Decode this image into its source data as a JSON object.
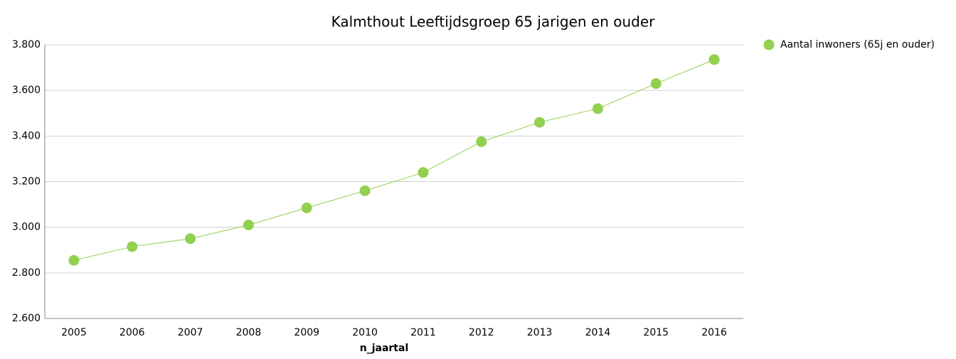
{
  "chart_data": {
    "type": "line",
    "title": "Kalmthout  Leeftijdsgroep 65 jarigen en ouder",
    "x_label": "n_jaartal",
    "categories": [
      "2005",
      "2006",
      "2007",
      "2008",
      "2009",
      "2010",
      "2011",
      "2012",
      "2013",
      "2014",
      "2015",
      "2016"
    ],
    "series": [
      {
        "name": "Aantal inwoners (65j en ouder)",
        "color": "#92d050",
        "values": [
          2855,
          2915,
          2950,
          3010,
          3085,
          3160,
          3240,
          3375,
          3460,
          3520,
          3630,
          3735
        ]
      }
    ],
    "ylim": [
      2600,
      3800
    ],
    "yticks": [
      {
        "value": 2600,
        "label": "2.600"
      },
      {
        "value": 2800,
        "label": "2.800"
      },
      {
        "value": 3000,
        "label": "3.000"
      },
      {
        "value": 3200,
        "label": "3.200"
      },
      {
        "value": 3400,
        "label": "3.400"
      },
      {
        "value": 3600,
        "label": "3.600"
      },
      {
        "value": 3800,
        "label": "3.800"
      }
    ],
    "grid": true,
    "legend": "right"
  }
}
